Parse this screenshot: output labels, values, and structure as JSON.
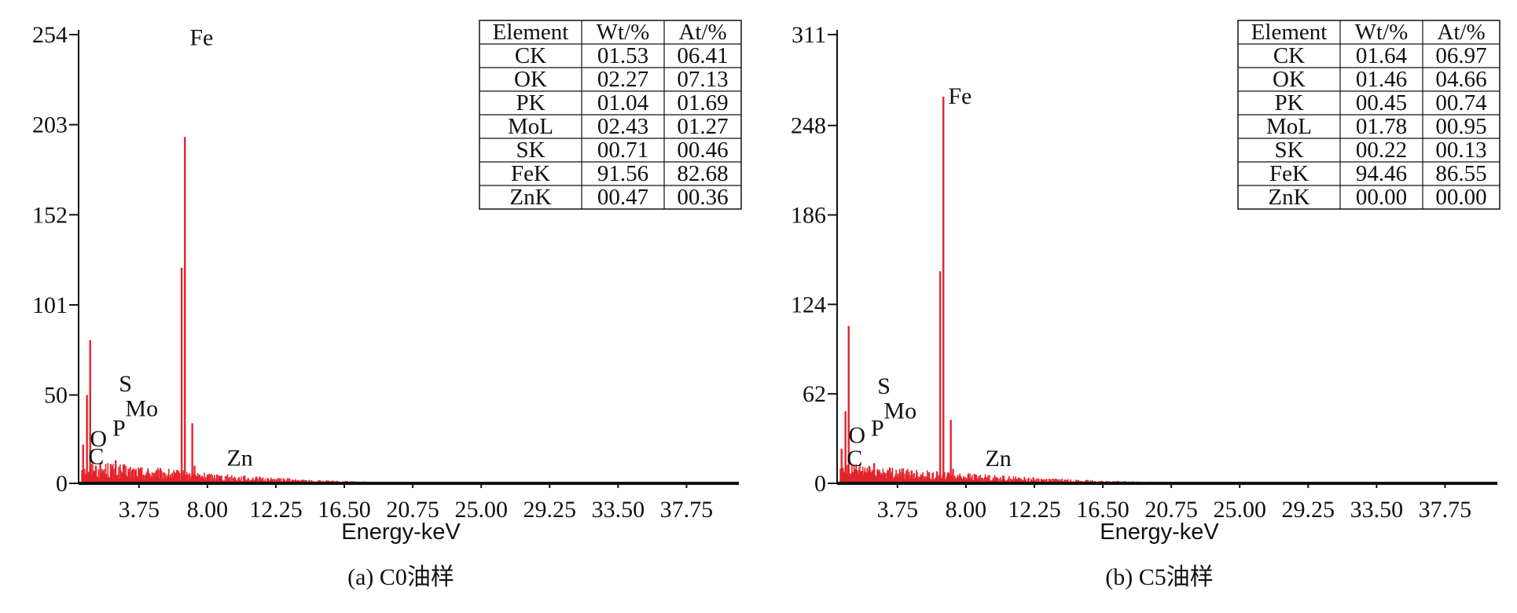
{
  "chart_data": [
    {
      "type": "bar",
      "caption": "(a) C0油样",
      "xlabel": "Energy-keV",
      "ylabel": "",
      "x_ticks": [
        "3.75",
        "8.00",
        "12.25",
        "16.50",
        "20.75",
        "25.00",
        "29.25",
        "33.50",
        "37.75"
      ],
      "y_ticks": [
        "0",
        "50",
        "101",
        "152",
        "203",
        "254"
      ],
      "xlim": [
        0,
        41
      ],
      "ylim": [
        0,
        254
      ],
      "color": "#e3242b",
      "peaks": [
        {
          "x": 0.28,
          "y": 22
        },
        {
          "x": 0.52,
          "y": 50
        },
        {
          "x": 0.72,
          "y": 81
        },
        {
          "x": 1.0,
          "y": 7
        },
        {
          "x": 2.0,
          "y": 11
        },
        {
          "x": 2.3,
          "y": 13
        },
        {
          "x": 6.4,
          "y": 122
        },
        {
          "x": 6.6,
          "y": 196
        },
        {
          "x": 7.06,
          "y": 34
        },
        {
          "x": 7.2,
          "y": 10
        },
        {
          "x": 8.6,
          "y": 5
        },
        {
          "x": 13.0,
          "y": 3
        }
      ],
      "noise": {
        "x_start": 0.2,
        "x_end": 18.0,
        "level_start": 11,
        "level_end": 1
      },
      "annotations": [
        {
          "text": "Fe",
          "x": 6.9,
          "y": 248
        },
        {
          "text": "S",
          "x": 2.5,
          "y": 52
        },
        {
          "text": "Mo",
          "x": 2.9,
          "y": 38
        },
        {
          "text": "P",
          "x": 2.1,
          "y": 27
        },
        {
          "text": "O",
          "x": 0.7,
          "y": 21
        },
        {
          "text": "C",
          "x": 0.6,
          "y": 11
        },
        {
          "text": "Zn",
          "x": 9.2,
          "y": 10
        }
      ],
      "table": {
        "headers": [
          "Element",
          "Wt/%",
          "At/%"
        ],
        "rows": [
          [
            "CK",
            "01.53",
            "06.41"
          ],
          [
            "OK",
            "02.27",
            "07.13"
          ],
          [
            "PK",
            "01.04",
            "01.69"
          ],
          [
            "MoL",
            "02.43",
            "01.27"
          ],
          [
            "SK",
            "00.71",
            "00.46"
          ],
          [
            "FeK",
            "91.56",
            "82.68"
          ],
          [
            "ZnK",
            "00.47",
            "00.36"
          ]
        ]
      }
    },
    {
      "type": "bar",
      "caption": "(b) C5油样",
      "xlabel": "Energy-keV",
      "ylabel": "",
      "x_ticks": [
        "3.75",
        "8.00",
        "12.25",
        "16.50",
        "20.75",
        "25.00",
        "29.25",
        "33.50",
        "37.75"
      ],
      "y_ticks": [
        "0",
        "62",
        "124",
        "186",
        "248",
        "311"
      ],
      "xlim": [
        0,
        41
      ],
      "ylim": [
        0,
        311
      ],
      "color": "#e3242b",
      "peaks": [
        {
          "x": 0.28,
          "y": 24
        },
        {
          "x": 0.52,
          "y": 50
        },
        {
          "x": 0.72,
          "y": 109
        },
        {
          "x": 1.0,
          "y": 8
        },
        {
          "x": 2.0,
          "y": 12
        },
        {
          "x": 2.3,
          "y": 14
        },
        {
          "x": 6.4,
          "y": 147
        },
        {
          "x": 6.6,
          "y": 268
        },
        {
          "x": 7.06,
          "y": 44
        },
        {
          "x": 7.2,
          "y": 10
        },
        {
          "x": 8.6,
          "y": 6
        },
        {
          "x": 13.0,
          "y": 3
        }
      ],
      "noise": {
        "x_start": 0.2,
        "x_end": 20.0,
        "level_start": 12,
        "level_end": 1
      },
      "annotations": [
        {
          "text": "Fe",
          "x": 6.9,
          "y": 263
        },
        {
          "text": "S",
          "x": 2.5,
          "y": 62
        },
        {
          "text": "Mo",
          "x": 2.9,
          "y": 45
        },
        {
          "text": "P",
          "x": 2.1,
          "y": 33
        },
        {
          "text": "O",
          "x": 0.7,
          "y": 28
        },
        {
          "text": "C",
          "x": 0.6,
          "y": 12
        },
        {
          "text": "Zn",
          "x": 9.2,
          "y": 12
        }
      ],
      "table": {
        "headers": [
          "Element",
          "Wt/%",
          "At/%"
        ],
        "rows": [
          [
            "CK",
            "01.64",
            "06.97"
          ],
          [
            "OK",
            "01.46",
            "04.66"
          ],
          [
            "PK",
            "00.45",
            "00.74"
          ],
          [
            "MoL",
            "01.78",
            "00.95"
          ],
          [
            "SK",
            "00.22",
            "00.13"
          ],
          [
            "FeK",
            "94.46",
            "86.55"
          ],
          [
            "ZnK",
            "00.00",
            "00.00"
          ]
        ]
      }
    }
  ]
}
